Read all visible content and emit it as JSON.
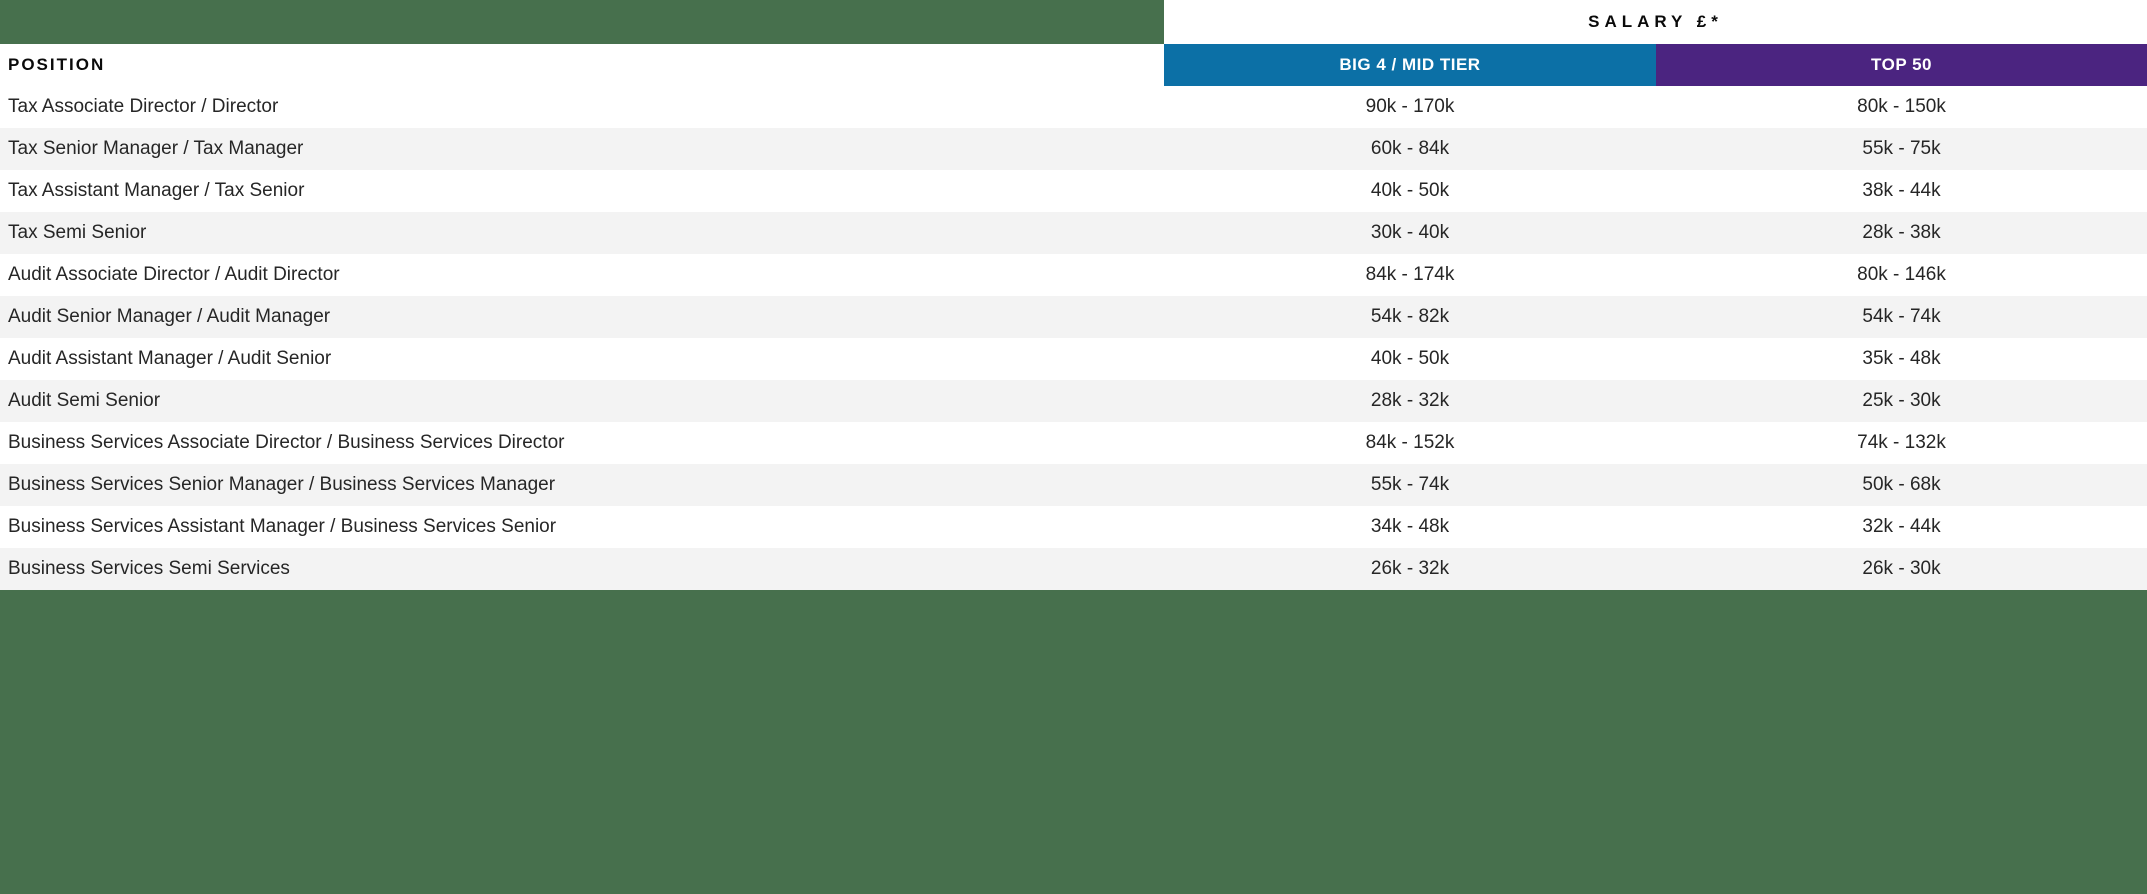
{
  "header": {
    "salary_label": "SALARY £*",
    "position_label": "POSITION",
    "big4_label": "BIG 4 / MID TIER",
    "top50_label": "TOP 50"
  },
  "table": {
    "columns": [
      "POSITION",
      "BIG 4 / MID TIER",
      "TOP 50"
    ],
    "rows": [
      {
        "position": "Tax Associate Director / Director",
        "big4": "90k - 170k",
        "top50": "80k - 150k"
      },
      {
        "position": "Tax Senior Manager / Tax Manager",
        "big4": "60k - 84k",
        "top50": "55k - 75k"
      },
      {
        "position": "Tax Assistant Manager / Tax Senior",
        "big4": "40k - 50k",
        "top50": "38k - 44k"
      },
      {
        "position": "Tax Semi Senior",
        "big4": "30k - 40k",
        "top50": "28k - 38k"
      },
      {
        "position": "Audit Associate Director / Audit Director",
        "big4": "84k - 174k",
        "top50": "80k - 146k"
      },
      {
        "position": "Audit Senior Manager / Audit Manager",
        "big4": "54k - 82k",
        "top50": "54k - 74k"
      },
      {
        "position": "Audit Assistant Manager / Audit Senior",
        "big4": "40k - 50k",
        "top50": "35k - 48k"
      },
      {
        "position": "Audit Semi Senior",
        "big4": "28k - 32k",
        "top50": "25k - 30k"
      },
      {
        "position": "Business Services Associate Director / Business Services Director",
        "big4": "84k - 152k",
        "top50": "74k - 132k"
      },
      {
        "position": "Business Services Senior Manager / Business Services Manager",
        "big4": "55k - 74k",
        "top50": "50k - 68k"
      },
      {
        "position": "Business Services Assistant Manager / Business Services Senior",
        "big4": "34k - 48k",
        "top50": "32k - 44k"
      },
      {
        "position": "Business Services Semi Services",
        "big4": "26k - 32k",
        "top50": "26k - 30k"
      }
    ]
  },
  "colors": {
    "green": "#47704d",
    "blue": "#0c70a6",
    "purple": "#4b2480",
    "row_stripe": "#f3f3f3",
    "text": "#262626"
  }
}
